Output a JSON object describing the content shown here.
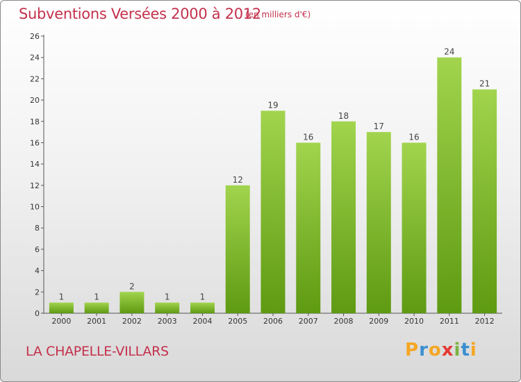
{
  "title": "Subventions Versées 2000 à 2012",
  "subtitle": "(en milliers d'€)",
  "place": "LA CHAPELLE-VILLARS",
  "logo": {
    "letters": [
      "P",
      "r",
      "o",
      "x",
      "i",
      "t",
      "i"
    ],
    "colors": [
      "#f5a623",
      "#3a8fd0",
      "#f5a623",
      "#e53935",
      "#7cb342",
      "#3a8fd0",
      "#f5a623"
    ]
  },
  "colors": {
    "title": "#c4304c",
    "bar_top": "#a2d44e",
    "bar_bottom": "#5e9a12",
    "axis": "#555555",
    "grid": "#bbbbbb"
  },
  "chart_data": {
    "type": "bar",
    "categories": [
      "2000",
      "2001",
      "2002",
      "2003",
      "2004",
      "2005",
      "2006",
      "2007",
      "2008",
      "2009",
      "2010",
      "2011",
      "2012"
    ],
    "values": [
      1,
      1,
      2,
      1,
      1,
      12,
      19,
      16,
      18,
      17,
      16,
      24,
      21
    ],
    "ylim": [
      0,
      26
    ],
    "yticks": [
      0,
      2,
      4,
      6,
      8,
      10,
      12,
      14,
      16,
      18,
      20,
      22,
      24,
      26
    ],
    "grid": false
  }
}
